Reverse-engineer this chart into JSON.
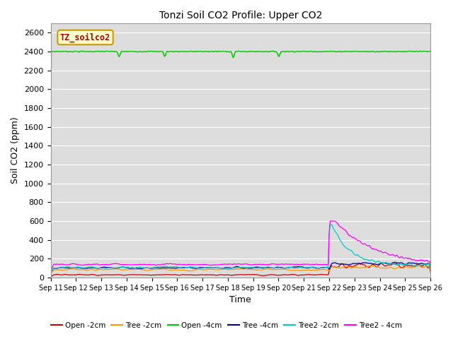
{
  "title": "Tonzi Soil CO2 Profile: Upper CO2",
  "xlabel": "Time",
  "ylabel": "Soil CO2 (ppm)",
  "annotation_label": "TZ_soilco2",
  "annotation_color": "#aa0000",
  "annotation_bg": "#ffffcc",
  "annotation_border": "#cc9900",
  "ylim": [
    0,
    2700
  ],
  "yticks": [
    0,
    200,
    400,
    600,
    800,
    1000,
    1200,
    1400,
    1600,
    1800,
    2000,
    2200,
    2400,
    2600
  ],
  "series": {
    "Open_2cm": {
      "color": "#cc0000",
      "label": "Open -2cm"
    },
    "Tree_2cm": {
      "color": "#ff9900",
      "label": "Tree -2cm"
    },
    "Open_4cm": {
      "color": "#00cc00",
      "label": "Open -4cm"
    },
    "Tree_4cm": {
      "color": "#000099",
      "label": "Tree -4cm"
    },
    "Tree2_2cm": {
      "color": "#00cccc",
      "label": "Tree2 -2cm"
    },
    "Tree2_4cm": {
      "color": "#ff00ff",
      "label": "Tree2 - 4cm"
    }
  },
  "background_color": "#dddddd",
  "grid_color": "#ffffff",
  "fig_bg": "#ffffff",
  "n_points": 600,
  "spike_day": 11.0,
  "total_days": 15
}
